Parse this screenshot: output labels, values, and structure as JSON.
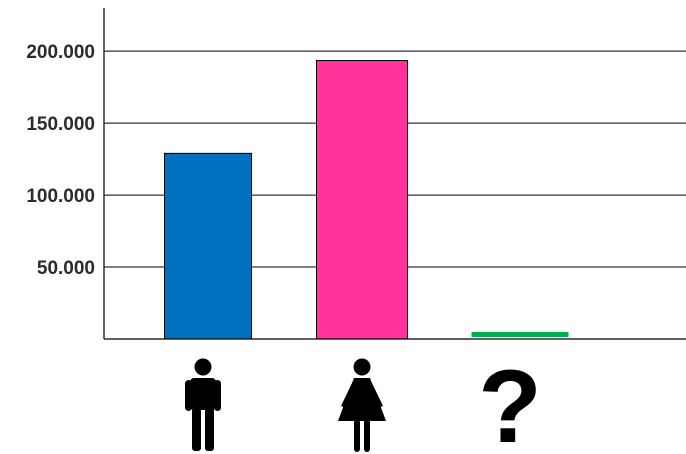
{
  "chart_data": {
    "type": "bar",
    "categories": [
      "male-icon",
      "female-icon",
      "question-mark-icon"
    ],
    "category_symbol_text": [
      "",
      "",
      "?"
    ],
    "values": [
      129000,
      193500,
      1500
    ],
    "colors": [
      "#0070c0",
      "#ff3399",
      "#00b050"
    ],
    "ylim": [
      0,
      230000
    ],
    "yticks": [
      {
        "value": 50000,
        "label": "50.000"
      },
      {
        "value": 100000,
        "label": "100.000"
      },
      {
        "value": 150000,
        "label": "150.000"
      },
      {
        "value": 200000,
        "label": "200.000"
      }
    ],
    "grid": true,
    "title": "",
    "xlabel": "",
    "ylabel": ""
  }
}
